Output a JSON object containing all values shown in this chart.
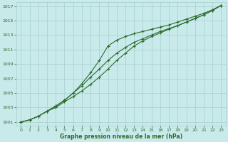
{
  "title": "",
  "xlabel": "Graphe pression niveau de la mer (hPa)",
  "ylabel": "",
  "bg_color": "#c8eaea",
  "grid_color": "#a8cece",
  "line_color": "#2d6b2d",
  "marker_color": "#2d6b2d",
  "xlim": [
    -0.5,
    23.5
  ],
  "ylim": [
    1000.5,
    1017.5
  ],
  "yticks": [
    1001,
    1003,
    1005,
    1007,
    1009,
    1011,
    1013,
    1015,
    1017
  ],
  "xticks": [
    0,
    1,
    2,
    3,
    4,
    5,
    6,
    7,
    8,
    9,
    10,
    11,
    12,
    13,
    14,
    15,
    16,
    17,
    18,
    19,
    20,
    21,
    22,
    23
  ],
  "line1": [
    1001.0,
    1001.3,
    1001.8,
    1002.5,
    1003.2,
    1004.0,
    1005.0,
    1006.3,
    1007.8,
    1009.5,
    1011.5,
    1012.3,
    1012.8,
    1013.2,
    1013.5,
    1013.8,
    1014.1,
    1014.4,
    1014.8,
    1015.2,
    1015.6,
    1016.0,
    1016.5,
    1017.1
  ],
  "line2": [
    1001.0,
    1001.3,
    1001.8,
    1002.5,
    1003.2,
    1004.0,
    1005.0,
    1006.0,
    1007.2,
    1008.3,
    1009.5,
    1010.5,
    1011.3,
    1012.0,
    1012.5,
    1013.0,
    1013.5,
    1013.9,
    1014.3,
    1014.8,
    1015.3,
    1015.8,
    1016.4,
    1017.1
  ],
  "line3": [
    1001.0,
    1001.3,
    1001.8,
    1002.5,
    1003.0,
    1003.8,
    1004.5,
    1005.3,
    1006.2,
    1007.2,
    1008.3,
    1009.5,
    1010.5,
    1011.5,
    1012.2,
    1012.8,
    1013.3,
    1013.8,
    1014.3,
    1014.8,
    1015.3,
    1015.8,
    1016.4,
    1017.1
  ]
}
